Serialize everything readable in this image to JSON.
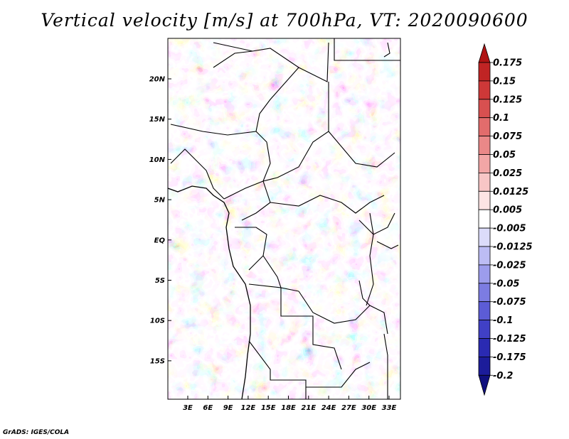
{
  "title": "Vertical velocity [m/s] at 700hPa, VT: 2020090600",
  "credit": "GrADS: IGES/COLA",
  "map": {
    "lat_labels": [
      "20N",
      "15N",
      "10N",
      "5N",
      "EQ",
      "5S",
      "10S",
      "15S"
    ],
    "lon_labels": [
      "3E",
      "6E",
      "9E",
      "12E",
      "15E",
      "18E",
      "21E",
      "24E",
      "27E",
      "30E",
      "33E"
    ]
  },
  "colorbar": {
    "labels": [
      "0.175",
      "0.15",
      "0.125",
      "0.1",
      "0.075",
      "0.05",
      "0.025",
      "0.0125",
      "0.005",
      "-0.005",
      "-0.0125",
      "-0.025",
      "-0.05",
      "-0.075",
      "-0.1",
      "-0.125",
      "-0.175",
      "-0.2"
    ],
    "colors": [
      "#b01414",
      "#c02424",
      "#ce3838",
      "#d85050",
      "#e26c6c",
      "#ea8888",
      "#f2a6a6",
      "#f8c6c6",
      "#fde4e4",
      "#ffffff",
      "#dcdcfa",
      "#bcbcf4",
      "#9c9cec",
      "#7c7ce2",
      "#5c5cd6",
      "#4040c6",
      "#2a2ab2",
      "#1c1c9a",
      "#10107e"
    ]
  }
}
